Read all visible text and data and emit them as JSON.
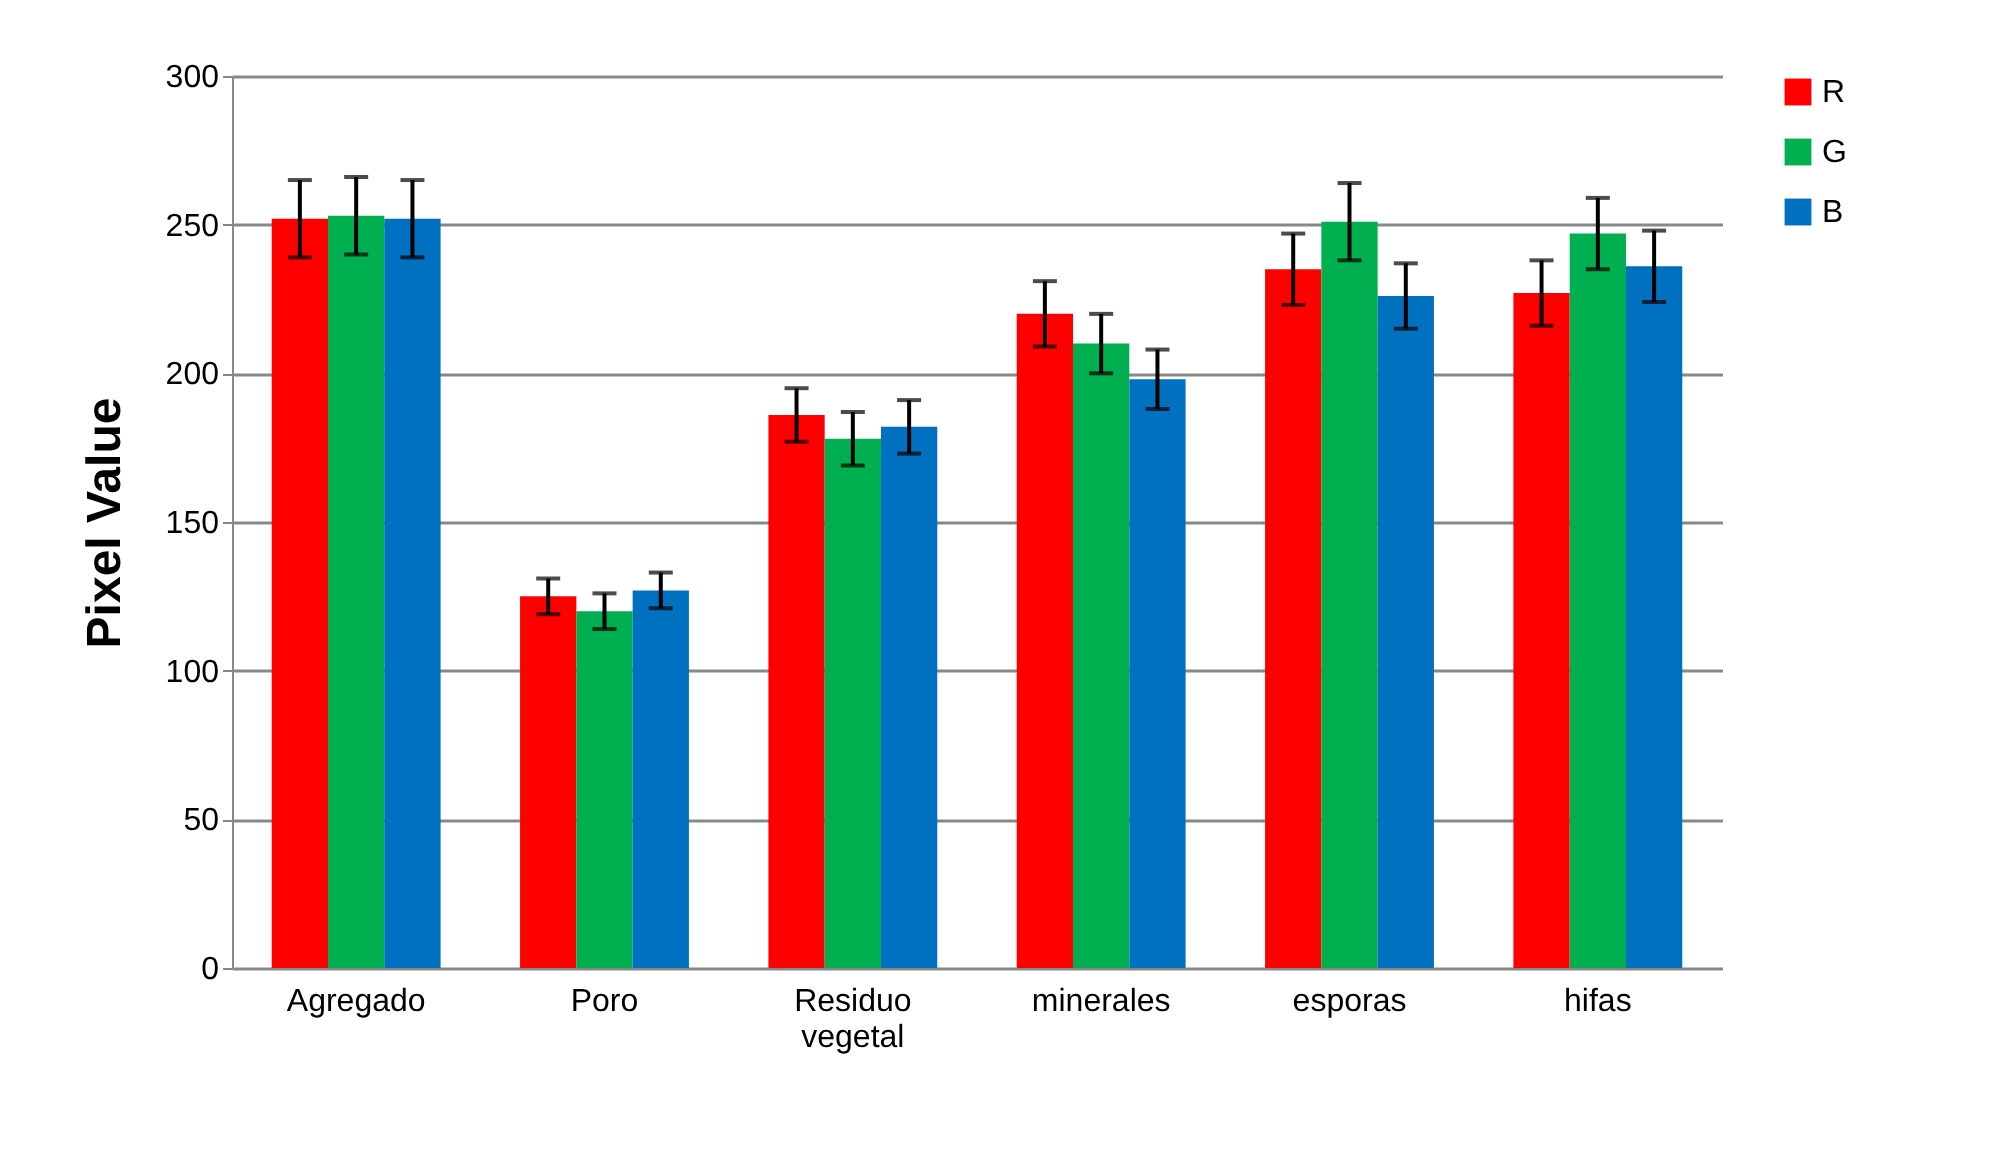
{
  "chart_data": {
    "type": "bar",
    "ylabel": "Pixel Value",
    "categories": [
      "Agregado",
      "Poro",
      "Residuo vegetal",
      "minerales",
      "esporas",
      "hifas"
    ],
    "series": [
      {
        "name": "R",
        "color": "#ff0000",
        "values": [
          252,
          125,
          186,
          220,
          235,
          227
        ],
        "errors": [
          13,
          6,
          9,
          11,
          12,
          11
        ]
      },
      {
        "name": "G",
        "color": "#00b050",
        "values": [
          253,
          120,
          178,
          210,
          251,
          247
        ],
        "errors": [
          13,
          6,
          9,
          10,
          13,
          12
        ]
      },
      {
        "name": "B",
        "color": "#0070c0",
        "values": [
          252,
          127,
          182,
          198,
          226,
          236
        ],
        "errors": [
          13,
          6,
          9,
          10,
          11,
          12
        ]
      }
    ],
    "ylim": [
      0,
      300
    ],
    "yticks": [
      0,
      50,
      100,
      150,
      200,
      250,
      300
    ],
    "grid": "y",
    "legend": "right"
  }
}
